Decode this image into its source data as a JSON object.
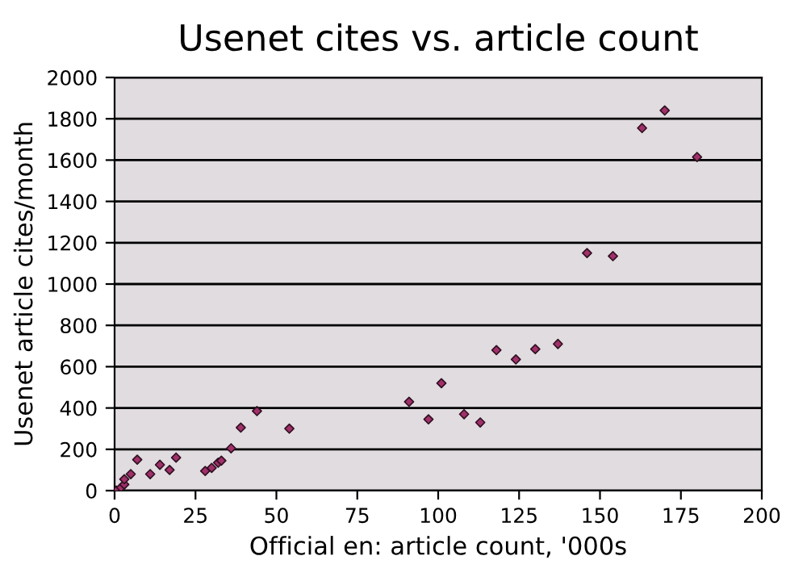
{
  "chart_data": {
    "type": "scatter",
    "title": "Usenet cites vs. article count",
    "xlabel": "Official en: article count, '000s",
    "ylabel": "Usenet article cites/month",
    "x": [
      0.5,
      2,
      3,
      3,
      5,
      7,
      11,
      14,
      17,
      19,
      28,
      30,
      32,
      33,
      36,
      39,
      44,
      54,
      91,
      97,
      101,
      108,
      113,
      118,
      124,
      130,
      137,
      146,
      154,
      163,
      170,
      180
    ],
    "values": [
      0,
      15,
      30,
      55,
      80,
      150,
      80,
      125,
      100,
      160,
      95,
      110,
      135,
      145,
      205,
      305,
      385,
      300,
      430,
      345,
      520,
      370,
      330,
      680,
      635,
      685,
      710,
      1150,
      1135,
      1755,
      1840,
      1615
    ],
    "color": "#a0306a",
    "marker": "diamond",
    "xlim": [
      0,
      200
    ],
    "xticks": [
      0,
      25,
      50,
      75,
      100,
      125,
      150,
      175,
      200
    ],
    "ylim": [
      0,
      2000
    ],
    "yticks": [
      0,
      200,
      400,
      600,
      800,
      1000,
      1200,
      1400,
      1600,
      1800,
      2000
    ],
    "grid": "y"
  }
}
